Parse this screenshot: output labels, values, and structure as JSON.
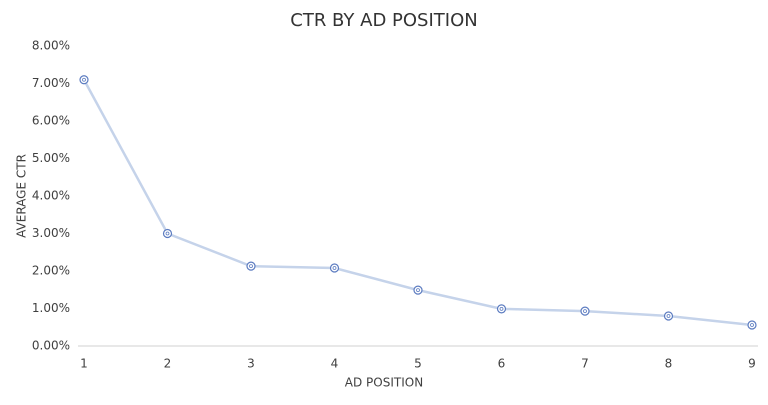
{
  "chart_data": {
    "type": "line",
    "title": "CTR BY AD POSITION",
    "x_label": "AD POSITION",
    "y_label": "AVERAGE CTR",
    "x": [
      1,
      2,
      3,
      4,
      5,
      6,
      7,
      8,
      9
    ],
    "values": [
      7.1,
      3.0,
      2.13,
      2.08,
      1.49,
      0.99,
      0.93,
      0.8,
      0.56
    ],
    "color": "#c5d3ea",
    "marker_color": "#5b7bc0",
    "xlim": [
      1,
      9
    ],
    "xticks": [
      1,
      2,
      3,
      4,
      5,
      6,
      7,
      8,
      9
    ],
    "ylim": [
      0,
      8
    ],
    "yticks": [
      {
        "value": 0,
        "label": "0.00%"
      },
      {
        "value": 1,
        "label": "1.00%"
      },
      {
        "value": 2,
        "label": "2.00%"
      },
      {
        "value": 3,
        "label": "3.00%"
      },
      {
        "value": 4,
        "label": "4.00%"
      },
      {
        "value": 5,
        "label": "5.00%"
      },
      {
        "value": 6,
        "label": "6.00%"
      },
      {
        "value": 7,
        "label": "7.00%"
      },
      {
        "value": 8,
        "label": "8.00%"
      }
    ],
    "grid": false
  }
}
